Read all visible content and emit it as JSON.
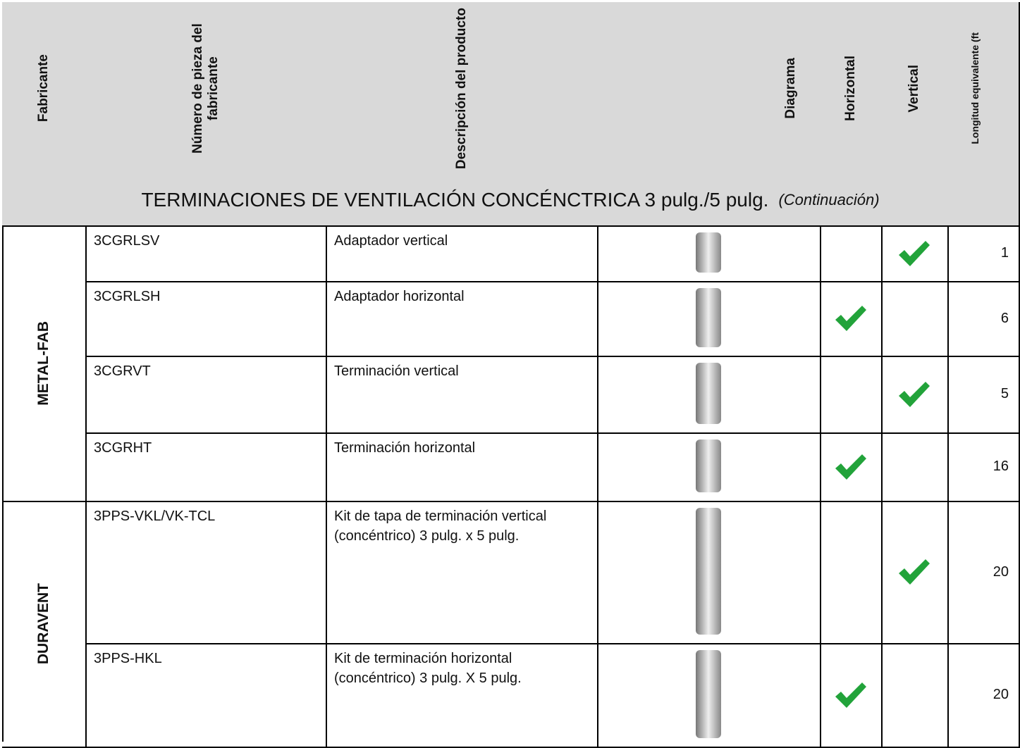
{
  "header": {
    "columns": [
      "Fabricante",
      "Número de pieza del fabricante",
      "Descripción del producto",
      "Diagrama",
      "Horizontal",
      "Vertical",
      "Longitud equivalente (ft"
    ]
  },
  "section": {
    "title": "TERMINACIONES DE VENTILACIÓN CONCÉNCTRICA 3 pulg./5 pulg.",
    "note": "(Continuación)"
  },
  "groups": [
    {
      "manufacturer": "METAL-FAB",
      "rows": [
        {
          "part": "3CGRLSV",
          "description": "Adaptador vertical",
          "horizontal": false,
          "vertical": true,
          "length": 1
        },
        {
          "part": "3CGRLSH",
          "description": "Adaptador horizontal",
          "horizontal": true,
          "vertical": false,
          "length": 6
        },
        {
          "part": "3CGRVT",
          "description": "Terminación vertical",
          "horizontal": false,
          "vertical": true,
          "length": 5
        },
        {
          "part": "3CGRHT",
          "description": "Terminación horizontal",
          "horizontal": true,
          "vertical": false,
          "length": 16
        }
      ]
    },
    {
      "manufacturer": "DURAVENT",
      "rows": [
        {
          "part": "3PPS-VKL/VK-TCL",
          "description": "Kit de tapa de terminación vertical (concéntrico) 3 pulg. x 5 pulg.",
          "horizontal": false,
          "vertical": true,
          "length": 20
        },
        {
          "part": "3PPS-HKL",
          "description": "Kit de terminación horizontal (concéntrico) 3 pulg. X 5 pulg.",
          "horizontal": true,
          "vertical": false,
          "length": 20
        }
      ]
    }
  ]
}
